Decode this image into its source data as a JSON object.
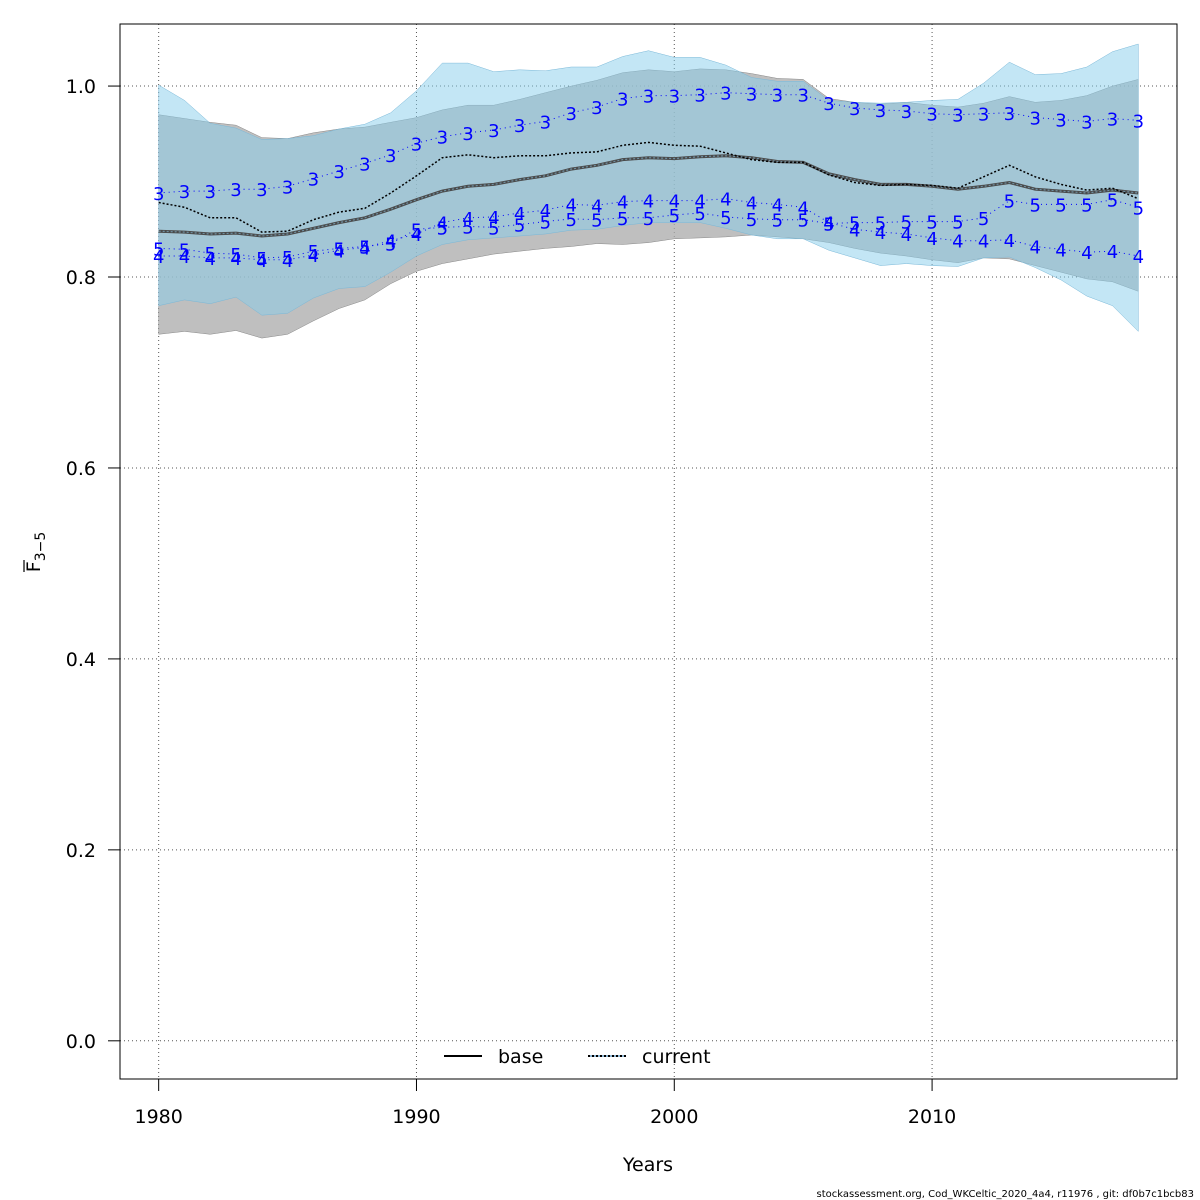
{
  "chart_data": {
    "type": "line",
    "xlabel": "Years",
    "ylabel_main": "F",
    "ylabel_sub": "3−5",
    "xlim": [
      1978.5,
      2019.5
    ],
    "ylim": [
      -0.04,
      1.065
    ],
    "xticks": [
      1980,
      1990,
      2000,
      2010
    ],
    "yticks": [
      0.0,
      0.2,
      0.4,
      0.6,
      0.8,
      1.0
    ],
    "ytick_labels": [
      "0.0",
      "0.2",
      "0.4",
      "0.6",
      "0.8",
      "1.0"
    ],
    "grid": true,
    "x": [
      1980,
      1981,
      1982,
      1983,
      1984,
      1985,
      1986,
      1987,
      1988,
      1989,
      1990,
      1991,
      1992,
      1993,
      1994,
      1995,
      1996,
      1997,
      1998,
      1999,
      2000,
      2001,
      2002,
      2003,
      2004,
      2005,
      2006,
      2007,
      2008,
      2009,
      2010,
      2011,
      2012,
      2013,
      2014,
      2015,
      2016,
      2017,
      2018
    ],
    "series": [
      {
        "name": "base",
        "line_style": "solid",
        "values": [
          0.848,
          0.847,
          0.845,
          0.846,
          0.843,
          0.845,
          0.851,
          0.857,
          0.862,
          0.871,
          0.881,
          0.89,
          0.895,
          0.897,
          0.902,
          0.906,
          0.913,
          0.917,
          0.923,
          0.925,
          0.924,
          0.926,
          0.927,
          0.925,
          0.921,
          0.92,
          0.908,
          0.902,
          0.897,
          0.897,
          0.895,
          0.892,
          0.895,
          0.899,
          0.892,
          0.89,
          0.888,
          0.891,
          0.888
        ],
        "ci_lower": [
          0.74,
          0.743,
          0.74,
          0.744,
          0.736,
          0.74,
          0.754,
          0.767,
          0.776,
          0.793,
          0.806,
          0.814,
          0.819,
          0.824,
          0.827,
          0.83,
          0.832,
          0.835,
          0.834,
          0.836,
          0.84,
          0.841,
          0.842,
          0.844,
          0.842,
          0.84,
          0.836,
          0.83,
          0.825,
          0.822,
          0.818,
          0.815,
          0.82,
          0.819,
          0.812,
          0.805,
          0.798,
          0.795,
          0.785
        ],
        "ci_upper": [
          0.97,
          0.966,
          0.962,
          0.959,
          0.946,
          0.945,
          0.951,
          0.955,
          0.957,
          0.962,
          0.967,
          0.975,
          0.98,
          0.98,
          0.986,
          0.993,
          1.0,
          1.006,
          1.014,
          1.017,
          1.015,
          1.018,
          1.017,
          1.013,
          1.008,
          1.007,
          0.987,
          0.983,
          0.981,
          0.983,
          0.98,
          0.978,
          0.982,
          0.989,
          0.983,
          0.985,
          0.99,
          1.0,
          1.007
        ]
      },
      {
        "name": "current",
        "line_style": "dotted",
        "values": [
          0.878,
          0.873,
          0.862,
          0.862,
          0.847,
          0.848,
          0.86,
          0.868,
          0.872,
          0.888,
          0.906,
          0.925,
          0.928,
          0.925,
          0.927,
          0.927,
          0.93,
          0.931,
          0.938,
          0.941,
          0.938,
          0.937,
          0.93,
          0.923,
          0.92,
          0.92,
          0.907,
          0.899,
          0.896,
          0.897,
          0.896,
          0.893,
          0.905,
          0.917,
          0.905,
          0.897,
          0.891,
          0.893,
          0.882
        ],
        "ci_lower": [
          0.77,
          0.776,
          0.772,
          0.779,
          0.76,
          0.762,
          0.778,
          0.788,
          0.79,
          0.805,
          0.822,
          0.834,
          0.839,
          0.841,
          0.843,
          0.845,
          0.849,
          0.85,
          0.854,
          0.857,
          0.857,
          0.857,
          0.851,
          0.844,
          0.84,
          0.84,
          0.828,
          0.82,
          0.812,
          0.814,
          0.812,
          0.811,
          0.82,
          0.821,
          0.81,
          0.797,
          0.78,
          0.77,
          0.743
        ],
        "ci_upper": [
          1.001,
          0.985,
          0.961,
          0.956,
          0.944,
          0.945,
          0.948,
          0.955,
          0.96,
          0.972,
          0.995,
          1.024,
          1.024,
          1.015,
          1.017,
          1.016,
          1.02,
          1.02,
          1.031,
          1.037,
          1.03,
          1.03,
          1.022,
          1.009,
          1.005,
          1.005,
          0.985,
          0.983,
          0.982,
          0.983,
          0.985,
          0.986,
          1.003,
          1.025,
          1.012,
          1.013,
          1.02,
          1.036,
          1.044
        ]
      }
    ],
    "age_markers": [
      {
        "label": "3",
        "values": [
          0.888,
          0.89,
          0.89,
          0.892,
          0.892,
          0.895,
          0.903,
          0.911,
          0.919,
          0.928,
          0.94,
          0.947,
          0.951,
          0.954,
          0.959,
          0.963,
          0.972,
          0.978,
          0.987,
          0.99,
          0.99,
          0.991,
          0.993,
          0.992,
          0.991,
          0.991,
          0.982,
          0.977,
          0.975,
          0.974,
          0.971,
          0.97,
          0.971,
          0.972,
          0.967,
          0.965,
          0.963,
          0.966,
          0.964
        ]
      },
      {
        "label": "4",
        "values": [
          0.822,
          0.822,
          0.82,
          0.82,
          0.818,
          0.818,
          0.823,
          0.828,
          0.831,
          0.838,
          0.845,
          0.857,
          0.862,
          0.863,
          0.867,
          0.87,
          0.876,
          0.875,
          0.879,
          0.88,
          0.88,
          0.88,
          0.882,
          0.878,
          0.876,
          0.873,
          0.857,
          0.85,
          0.847,
          0.845,
          0.841,
          0.838,
          0.838,
          0.839,
          0.832,
          0.829,
          0.826,
          0.827,
          0.822
        ]
      },
      {
        "label": "5",
        "values": [
          0.83,
          0.829,
          0.825,
          0.824,
          0.82,
          0.821,
          0.827,
          0.83,
          0.832,
          0.835,
          0.85,
          0.852,
          0.853,
          0.852,
          0.855,
          0.858,
          0.861,
          0.86,
          0.862,
          0.862,
          0.865,
          0.867,
          0.863,
          0.861,
          0.86,
          0.86,
          0.856,
          0.857,
          0.857,
          0.858,
          0.858,
          0.858,
          0.862,
          0.88,
          0.876,
          0.876,
          0.876,
          0.881,
          0.873
        ]
      }
    ],
    "legend": {
      "position": "bottom-center",
      "entries": [
        "base",
        "current"
      ]
    },
    "colors": {
      "base_band": "#a9a9a9",
      "current_band": "#87ceeb",
      "overlap_band": "#8fb8cf",
      "base_line": "#000000",
      "current_line": "#000000",
      "marker": "#0000ff",
      "grid": "#555555"
    },
    "footer": "stockassessment.org, Cod_WKCeltic_2020_4a4, r11976 , git: df0b7c1bcb83"
  }
}
